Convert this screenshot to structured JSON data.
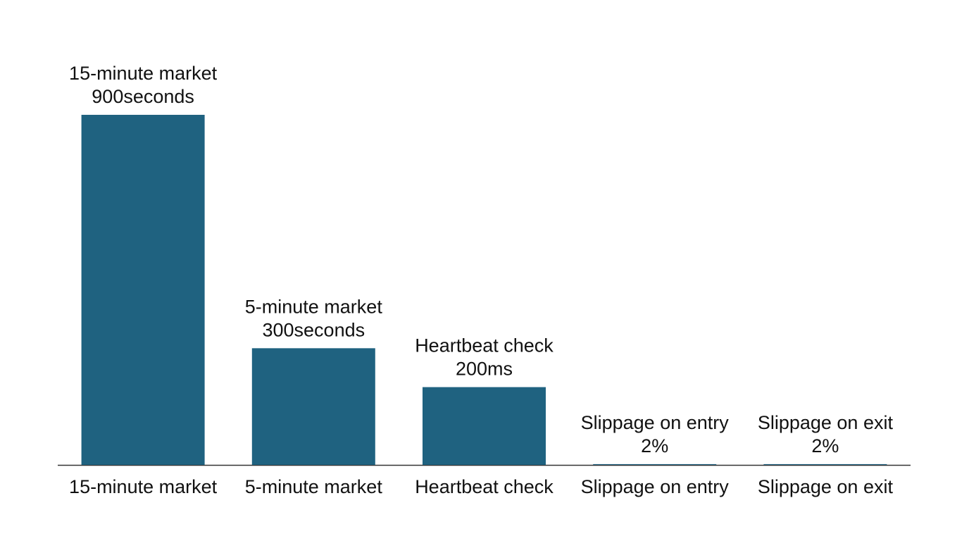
{
  "chart_data": {
    "type": "bar",
    "categories": [
      "15-minute market",
      "5-minute market",
      "Heartbeat check",
      "Slippage on entry",
      "Slippage on exit"
    ],
    "values": [
      900,
      300,
      200,
      2,
      2
    ],
    "value_labels": [
      "900seconds",
      "300seconds",
      "200ms",
      "2%",
      "2%"
    ],
    "color": "#1f6280"
  }
}
